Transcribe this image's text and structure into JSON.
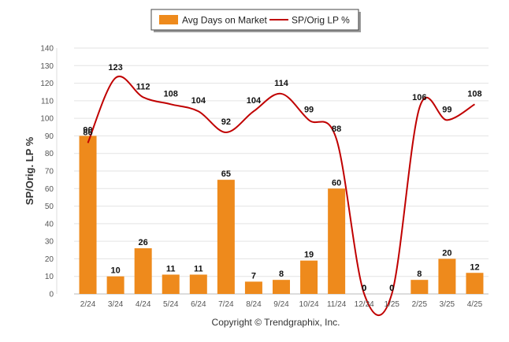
{
  "chart_data": {
    "type": "bar",
    "categories": [
      "2/24",
      "3/24",
      "4/24",
      "5/24",
      "6/24",
      "7/24",
      "8/24",
      "9/24",
      "10/24",
      "11/24",
      "12/24",
      "1/25",
      "2/25",
      "3/25",
      "4/25"
    ],
    "series": [
      {
        "name": "Avg Days on Market",
        "type": "bar",
        "color": "#ee8a1c",
        "values": [
          90,
          10,
          26,
          11,
          11,
          65,
          7,
          8,
          19,
          60,
          0,
          0,
          8,
          20,
          12
        ]
      },
      {
        "name": "SP/Orig LP %",
        "type": "line",
        "color": "#c00000",
        "values": [
          86,
          123,
          112,
          108,
          104,
          92,
          104,
          114,
          99,
          88,
          0,
          0,
          106,
          99,
          108
        ]
      }
    ],
    "ylabel": "SP/Orig. LP %",
    "ylim": [
      0,
      140
    ],
    "yticks": [
      0,
      10,
      20,
      30,
      40,
      50,
      60,
      70,
      80,
      90,
      100,
      110,
      120,
      130,
      140
    ],
    "grid": true,
    "legend": "top-center",
    "copyright": "Copyright © Trendgraphix, Inc."
  }
}
